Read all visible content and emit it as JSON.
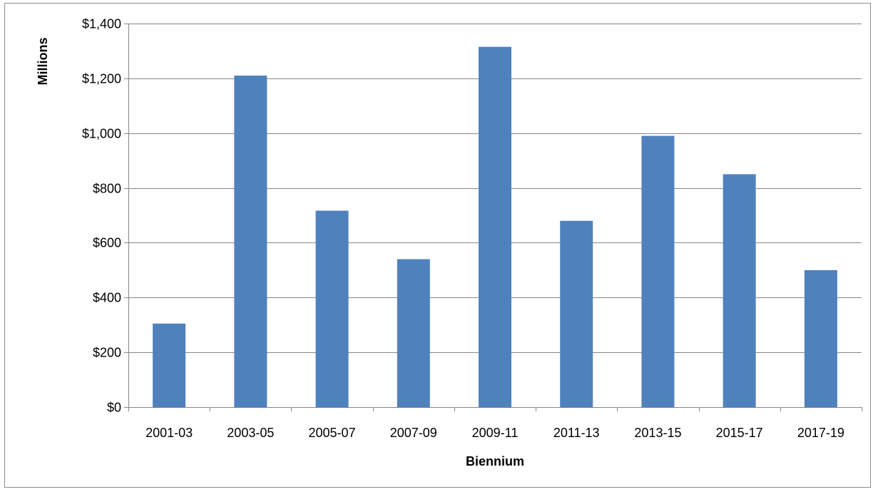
{
  "chart_data": {
    "type": "bar",
    "categories": [
      "2001-03",
      "2003-05",
      "2005-07",
      "2007-09",
      "2009-11",
      "2011-13",
      "2013-15",
      "2015-17",
      "2017-19"
    ],
    "values": [
      305,
      1210,
      717,
      540,
      1315,
      680,
      990,
      850,
      500
    ],
    "xlabel": "Biennium",
    "ylabel": "Millions",
    "ylim": [
      0,
      1400
    ],
    "y_ticks": [
      0,
      200,
      400,
      600,
      800,
      1000,
      1200,
      1400
    ],
    "y_tick_labels": [
      "$0",
      "$200",
      "$400",
      "$600",
      "$800",
      "$1,000",
      "$1,200",
      "$1,400"
    ],
    "grid": "horizontal",
    "legend": "none",
    "bar_color": "#4f81bd",
    "grid_color": "#868686"
  }
}
